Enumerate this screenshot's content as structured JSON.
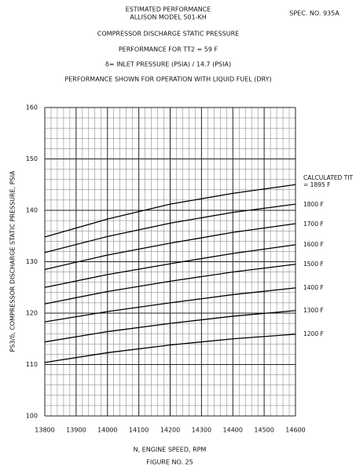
{
  "chart_data": {
    "type": "line",
    "header": [
      "ESTIMATED PERFORMANCE",
      "ALLISON MODEL 501-KH"
    ],
    "spec": "SPEC. NO. 935A",
    "title": "COMPRESSOR DISCHARGE STATIC PRESSURE",
    "subtitles": [
      "PERFORMANCE FOR TT2 = 59 F",
      "δ= INLET PRESSURE (PSIA) / 14.7 (PSIA)",
      "PERFORMANCE SHOWN FOR OPERATION WITH LIQUID FUEL (DRY)"
    ],
    "x_label": "N, ENGINE SPEED, RPM",
    "y_label": "PS3/δ, COMPRESSOR DISCHARGE STATIC PRESSURE, PSIA",
    "footer": "FIGURE NO. 25",
    "x": [
      13800,
      14000,
      14200,
      14400,
      14600
    ],
    "series": [
      {
        "name": "CALCULATED TIT = 1895 F",
        "color": "#000000",
        "values": [
          134.8,
          138.3,
          141.2,
          143.3,
          145.0
        ]
      },
      {
        "name": "1800 F",
        "color": "#000000",
        "values": [
          131.8,
          134.9,
          137.5,
          139.6,
          141.2
        ]
      },
      {
        "name": "1700 F",
        "color": "#000000",
        "values": [
          128.5,
          131.3,
          133.6,
          135.7,
          137.4
        ]
      },
      {
        "name": "1600 F",
        "color": "#000000",
        "values": [
          125.0,
          127.5,
          129.6,
          131.6,
          133.3
        ]
      },
      {
        "name": "1500 F",
        "color": "#000000",
        "values": [
          121.8,
          124.2,
          126.2,
          128.0,
          129.5
        ]
      },
      {
        "name": "1400 F",
        "color": "#000000",
        "values": [
          118.3,
          120.3,
          122.0,
          123.6,
          124.9
        ]
      },
      {
        "name": "1300 F",
        "color": "#000000",
        "values": [
          114.4,
          116.4,
          118.0,
          119.4,
          120.5
        ]
      },
      {
        "name": "1200 F",
        "color": "#000000",
        "values": [
          110.4,
          112.3,
          113.8,
          115.0,
          115.9
        ]
      }
    ],
    "xlim": [
      13800,
      14600
    ],
    "ylim": [
      100,
      160
    ],
    "xticks": [
      13800,
      13900,
      14000,
      14100,
      14200,
      14300,
      14400,
      14500,
      14600
    ],
    "yticks": [
      100,
      110,
      120,
      130,
      140,
      150,
      160
    ],
    "grid": true,
    "minor_divisions": 5
  }
}
